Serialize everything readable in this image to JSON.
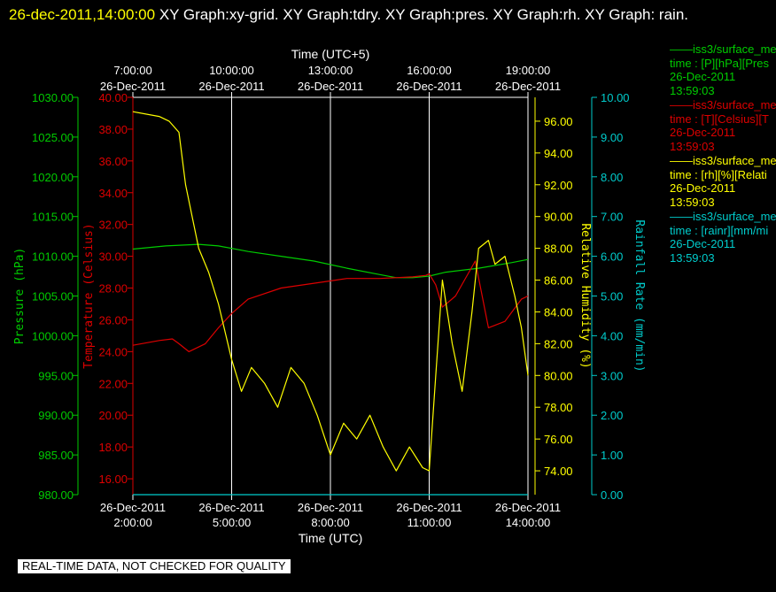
{
  "header": {
    "timestamp": "26-dec-2011,14:00:00",
    "rest": "  XY Graph:xy-grid.  XY Graph:tdry.  XY Graph:pres.  XY Graph:rh.  XY Graph: rain."
  },
  "badge": "REAL-TIME DATA, NOT CHECKED FOR QUALITY",
  "colors": {
    "pressure": "#00cc00",
    "temperature": "#dd0000",
    "humidity": "#ffff00",
    "rain": "#00cccc",
    "grid": "#ffffff"
  },
  "chart_data": {
    "type": "line",
    "x_bottom_label": "Time (UTC)",
    "x_top_label": "Time (UTC+5)",
    "x_range": [
      "2011-12-26 02:00",
      "2011-12-26 14:00"
    ],
    "bottom_ticks": [
      {
        "date": "26-Dec-2011",
        "time": "2:00:00"
      },
      {
        "date": "26-Dec-2011",
        "time": "5:00:00"
      },
      {
        "date": "26-Dec-2011",
        "time": "8:00:00"
      },
      {
        "date": "26-Dec-2011",
        "time": "11:00:00"
      },
      {
        "date": "26-Dec-2011",
        "time": "14:00:00"
      }
    ],
    "top_ticks": [
      {
        "time": "7:00:00",
        "date": "26-Dec-2011"
      },
      {
        "time": "10:00:00",
        "date": "26-Dec-2011"
      },
      {
        "time": "13:00:00",
        "date": "26-Dec-2011"
      },
      {
        "time": "16:00:00",
        "date": "26-Dec-2011"
      },
      {
        "time": "19:00:00",
        "date": "26-Dec-2011"
      }
    ],
    "axes": {
      "pressure": {
        "label": "Pressure (hPa)",
        "range": [
          980,
          1030
        ],
        "ticks": [
          "980.00",
          "985.00",
          "990.00",
          "995.00",
          "1000.00",
          "1005.00",
          "1010.00",
          "1015.00",
          "1020.00",
          "1025.00",
          "1030.00"
        ]
      },
      "temperature": {
        "label": "Temperature (Celsius)",
        "range": [
          15,
          40
        ],
        "ticks": [
          "16.00",
          "18.00",
          "20.00",
          "22.00",
          "24.00",
          "26.00",
          "28.00",
          "30.00",
          "32.00",
          "34.00",
          "36.00",
          "38.00",
          "40.00"
        ]
      },
      "humidity": {
        "label": "Relative Humidity (%)",
        "range": [
          72.5,
          97.5
        ],
        "ticks": [
          "74.00",
          "76.00",
          "78.00",
          "80.00",
          "82.00",
          "84.00",
          "86.00",
          "88.00",
          "90.00",
          "92.00",
          "94.00",
          "96.00"
        ]
      },
      "rain": {
        "label": "Rainfall Rate (mm/min)",
        "range": [
          0,
          10
        ],
        "ticks": [
          "0.00",
          "1.00",
          "2.00",
          "3.00",
          "4.00",
          "5.00",
          "6.00",
          "7.00",
          "8.00",
          "9.00",
          "10.00"
        ]
      }
    },
    "series": [
      {
        "key": "pressure",
        "name": "iss3/surface_me",
        "desc": "time : [P][hPa][Pres",
        "date": "26-Dec-2011",
        "time": "13:59:03",
        "x": [
          2.0,
          3.0,
          4.0,
          4.6,
          5.5,
          6.5,
          7.5,
          8.5,
          9.5,
          10.0,
          10.5,
          11.0,
          11.5,
          12.5,
          13.5,
          14.0
        ],
        "values": [
          1010.9,
          1011.3,
          1011.5,
          1011.3,
          1010.6,
          1010.0,
          1009.4,
          1008.5,
          1007.7,
          1007.3,
          1007.3,
          1007.5,
          1008.0,
          1008.5,
          1009.2,
          1009.6
        ]
      },
      {
        "key": "temperature",
        "name": "iss3/surface_me",
        "desc": "time : [T][Celsius][T",
        "date": "26-Dec-2011",
        "time": "13:59:03",
        "x": [
          2.0,
          2.8,
          3.2,
          3.4,
          3.7,
          4.2,
          4.6,
          5.0,
          5.5,
          6.5,
          7.5,
          8.5,
          9.5,
          10.5,
          10.9,
          11.0,
          11.2,
          11.4,
          11.8,
          12.4,
          12.8,
          13.3,
          13.8,
          14.0
        ],
        "values": [
          24.4,
          24.7,
          24.8,
          24.5,
          24.0,
          24.5,
          25.5,
          26.4,
          27.3,
          28.0,
          28.3,
          28.6,
          28.6,
          28.7,
          28.8,
          28.9,
          28.2,
          26.8,
          27.5,
          29.7,
          25.5,
          25.9,
          27.3,
          27.5
        ]
      },
      {
        "key": "humidity",
        "name": "iss3/surface_me",
        "desc": "time : [rh][%][Relati",
        "date": "26-Dec-2011",
        "time": "13:59:03",
        "x": [
          2.0,
          2.8,
          3.1,
          3.4,
          3.6,
          4.0,
          4.3,
          4.6,
          5.0,
          5.3,
          5.6,
          6.0,
          6.4,
          6.8,
          7.2,
          7.6,
          8.0,
          8.4,
          8.8,
          9.2,
          9.6,
          10.0,
          10.4,
          10.8,
          11.0,
          11.2,
          11.4,
          11.7,
          12.0,
          12.3,
          12.5,
          12.8,
          13.0,
          13.3,
          13.6,
          13.8,
          14.0
        ],
        "values": [
          96.6,
          96.3,
          96.0,
          95.3,
          92.0,
          88.0,
          86.5,
          84.5,
          81.0,
          79.0,
          80.5,
          79.5,
          78.0,
          80.5,
          79.5,
          77.5,
          75.0,
          77.0,
          76.0,
          77.5,
          75.5,
          74.0,
          75.5,
          74.2,
          74.0,
          80.0,
          86.0,
          82.0,
          79.0,
          84.0,
          88.0,
          88.5,
          87.0,
          87.5,
          85.0,
          83.0,
          80.0
        ]
      },
      {
        "key": "rain",
        "name": "iss3/surface_me",
        "desc": "time : [rainr][mm/mi",
        "date": "26-Dec-2011",
        "time": "13:59:03",
        "x": [
          2.0,
          14.0
        ],
        "values": [
          0.0,
          0.0
        ]
      }
    ],
    "grid": true,
    "legend_position": "right"
  }
}
